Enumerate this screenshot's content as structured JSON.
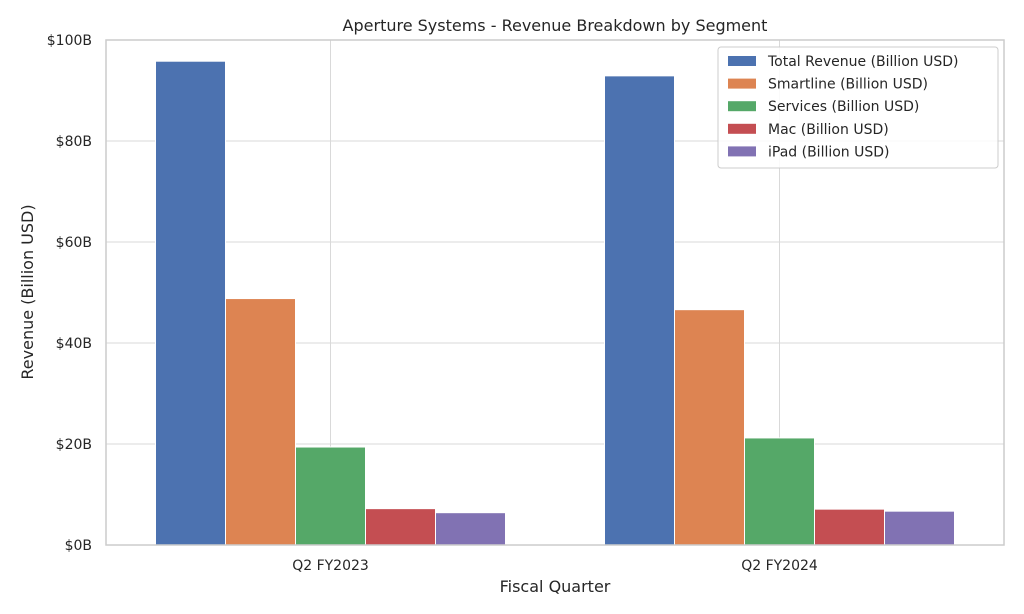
{
  "chart_data": {
    "type": "bar",
    "title": "Aperture Systems - Revenue Breakdown by Segment",
    "xlabel": "Fiscal Quarter",
    "ylabel": "Revenue (Billion USD)",
    "categories": [
      "Q2 FY2023",
      "Q2 FY2024"
    ],
    "ylim": [
      0,
      100
    ],
    "y_ticks": [
      0,
      20,
      40,
      60,
      80,
      100
    ],
    "y_tick_labels": [
      "$0B",
      "$20B",
      "$40B",
      "$60B",
      "$80B",
      "$100B"
    ],
    "grid": true,
    "legend_position": "top-right",
    "series": [
      {
        "name": "Total Revenue (Billion USD)",
        "color": "#4c72b0",
        "values": [
          95.8,
          92.9
        ]
      },
      {
        "name": "Smartline (Billion USD)",
        "color": "#dd8452",
        "values": [
          48.8,
          46.6
        ]
      },
      {
        "name": "Services (Billion USD)",
        "color": "#55a868",
        "values": [
          19.4,
          21.2
        ]
      },
      {
        "name": "Mac (Billion USD)",
        "color": "#c44e52",
        "values": [
          7.2,
          7.1
        ]
      },
      {
        "name": "iPad (Billion USD)",
        "color": "#8172b3",
        "values": [
          6.4,
          6.7
        ]
      }
    ]
  }
}
